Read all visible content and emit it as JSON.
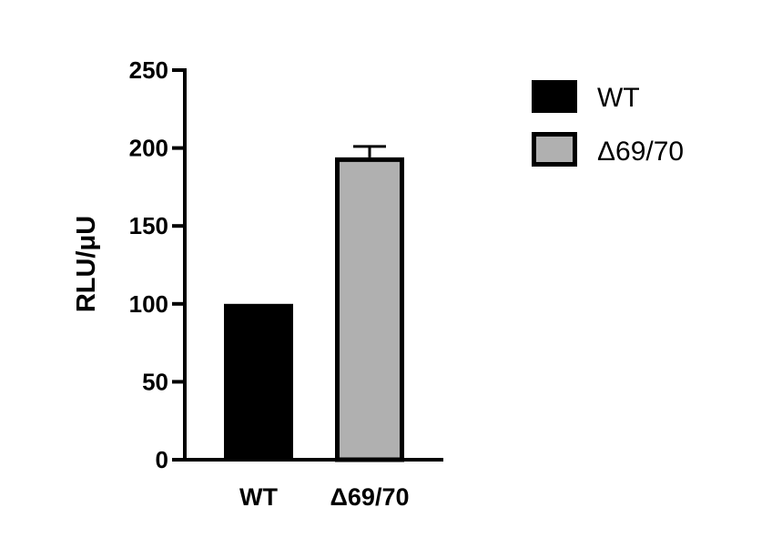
{
  "chart_data": {
    "type": "bar",
    "categories": [
      "WT",
      "Δ69/70"
    ],
    "series": [
      {
        "name": "WT",
        "values": [
          100,
          null
        ],
        "color": "#000000"
      },
      {
        "name": "Δ69/70",
        "values": [
          null,
          194
        ],
        "error": [
          null,
          7
        ],
        "color": "#b0b0b0"
      }
    ],
    "values": [
      100,
      194
    ],
    "errors": [
      0,
      7
    ],
    "colors": [
      "#000000",
      "#b0b0b0"
    ],
    "title": "",
    "xlabel": "",
    "ylabel": "RLU/μU",
    "ylim": [
      0,
      250
    ],
    "yticks": [
      0,
      50,
      100,
      150,
      200,
      250
    ],
    "grid": false,
    "legend": {
      "placement": "top-right",
      "entries": [
        {
          "label": "WT",
          "color": "#000000"
        },
        {
          "label": "Δ69/70",
          "color": "#b0b0b0"
        }
      ]
    }
  }
}
